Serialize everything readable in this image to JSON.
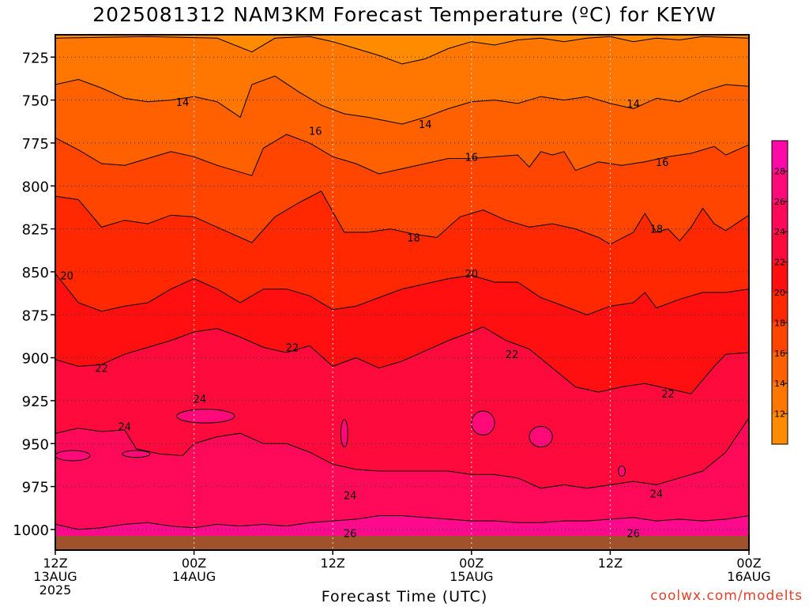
{
  "chart_data": {
    "type": "heatmap",
    "title": "2025081312 NAM3KM Forecast Temperature (ºC) for KEYW",
    "xlabel": "Forecast Time (UTC)",
    "credit": "coolwx.com/modelts",
    "x_ticks": [
      {
        "line1": "12Z",
        "line2": "13AUG",
        "line3": "2025",
        "hour": 0
      },
      {
        "line1": "00Z",
        "line2": "14AUG",
        "line3": "",
        "hour": 12
      },
      {
        "line1": "12Z",
        "line2": "",
        "line3": "",
        "hour": 24
      },
      {
        "line1": "00Z",
        "line2": "15AUG",
        "line3": "",
        "hour": 36
      },
      {
        "line1": "12Z",
        "line2": "",
        "line3": "",
        "hour": 48
      },
      {
        "line1": "00Z",
        "line2": "16AUG",
        "line3": "",
        "hour": 60
      }
    ],
    "xlim": [
      0,
      60
    ],
    "y_ticks": [
      725,
      750,
      775,
      800,
      825,
      850,
      875,
      900,
      925,
      950,
      975,
      1000
    ],
    "ylim": [
      712,
      1012
    ],
    "colorbar": {
      "levels": [
        10,
        12,
        14,
        16,
        18,
        20,
        22,
        24,
        26,
        28,
        30
      ],
      "labels": [
        12,
        14,
        16,
        18,
        20,
        22,
        24,
        26,
        28
      ],
      "colors": [
        "#ff8c00",
        "#ff7600",
        "#ff6000",
        "#ff4500",
        "#ff2800",
        "#ff0f0f",
        "#ff0a3c",
        "#ff0a5a",
        "#ff0a78",
        "#ff0aa6"
      ]
    },
    "ground_color": "#a0522d",
    "contours": [
      {
        "level": 14,
        "color": "#ff7600",
        "points": [
          [
            0,
            741
          ],
          [
            2,
            738
          ],
          [
            4,
            743
          ],
          [
            6,
            749
          ],
          [
            8,
            751
          ],
          [
            10,
            750
          ],
          [
            12,
            748
          ],
          [
            14,
            751
          ],
          [
            16,
            760
          ],
          [
            17,
            741
          ],
          [
            19,
            736
          ],
          [
            21,
            745
          ],
          [
            23,
            753
          ],
          [
            25,
            758
          ],
          [
            27,
            760
          ],
          [
            30,
            764
          ],
          [
            32,
            760
          ],
          [
            34,
            755
          ],
          [
            36,
            751
          ],
          [
            38,
            750
          ],
          [
            40,
            752
          ],
          [
            42,
            748
          ],
          [
            44,
            750
          ],
          [
            46,
            748
          ],
          [
            48,
            752
          ],
          [
            50,
            755
          ],
          [
            52,
            749
          ],
          [
            54,
            751
          ],
          [
            56,
            745
          ],
          [
            58,
            741
          ],
          [
            60,
            742
          ]
        ],
        "labels": [
          {
            "x": 11,
            "y": 751,
            "text": "14"
          },
          {
            "x": 32,
            "y": 764,
            "text": "14"
          },
          {
            "x": 50,
            "y": 752,
            "text": "14"
          }
        ]
      },
      {
        "level": 16,
        "color": "#ff6000",
        "points": [
          [
            0,
            772
          ],
          [
            2,
            779
          ],
          [
            4,
            787
          ],
          [
            6,
            788
          ],
          [
            8,
            784
          ],
          [
            10,
            780
          ],
          [
            12,
            783
          ],
          [
            14,
            788
          ],
          [
            17,
            794
          ],
          [
            18,
            778
          ],
          [
            20,
            770
          ],
          [
            22,
            775
          ],
          [
            24,
            783
          ],
          [
            26,
            787
          ],
          [
            28,
            793
          ],
          [
            30,
            790
          ],
          [
            32,
            787
          ],
          [
            34,
            784
          ],
          [
            36,
            784
          ],
          [
            38,
            783
          ],
          [
            40,
            782
          ],
          [
            41,
            789
          ],
          [
            42,
            780
          ],
          [
            43,
            782
          ],
          [
            44,
            780
          ],
          [
            45,
            791
          ],
          [
            47,
            786
          ],
          [
            49,
            788
          ],
          [
            51,
            786
          ],
          [
            53,
            783
          ],
          [
            55,
            781
          ],
          [
            57,
            777
          ],
          [
            58,
            782
          ],
          [
            60,
            776
          ]
        ],
        "labels": [
          {
            "x": 22.5,
            "y": 768,
            "text": "16"
          },
          {
            "x": 36,
            "y": 783,
            "text": "16"
          },
          {
            "x": 52.5,
            "y": 786,
            "text": "16"
          }
        ]
      },
      {
        "level": 18,
        "color": "#ff4500",
        "points": [
          [
            0,
            806
          ],
          [
            2,
            808
          ],
          [
            4,
            824
          ],
          [
            6,
            820
          ],
          [
            8,
            822
          ],
          [
            10,
            817
          ],
          [
            12,
            818
          ],
          [
            14,
            824
          ],
          [
            17,
            833
          ],
          [
            19,
            818
          ],
          [
            21,
            810
          ],
          [
            23,
            803
          ],
          [
            24,
            815
          ],
          [
            25,
            827
          ],
          [
            27,
            827
          ],
          [
            29,
            825
          ],
          [
            31,
            828
          ],
          [
            33,
            830
          ],
          [
            35,
            818
          ],
          [
            37,
            814
          ],
          [
            39,
            820
          ],
          [
            41,
            824
          ],
          [
            43,
            822
          ],
          [
            45,
            825
          ],
          [
            47,
            830
          ],
          [
            48,
            834
          ],
          [
            50,
            827
          ],
          [
            51,
            816
          ],
          [
            52,
            827
          ],
          [
            53,
            825
          ],
          [
            54,
            832
          ],
          [
            55,
            824
          ],
          [
            56,
            813
          ],
          [
            57,
            822
          ],
          [
            58,
            826
          ],
          [
            60,
            817
          ]
        ],
        "labels": [
          {
            "x": 31,
            "y": 830,
            "text": "18"
          },
          {
            "x": 52,
            "y": 825,
            "text": "18"
          }
        ]
      },
      {
        "level": 20,
        "color": "#ff2800",
        "points": [
          [
            0,
            851
          ],
          [
            2,
            868
          ],
          [
            4,
            873
          ],
          [
            6,
            870
          ],
          [
            8,
            868
          ],
          [
            10,
            860
          ],
          [
            12,
            854
          ],
          [
            14,
            860
          ],
          [
            16,
            868
          ],
          [
            18,
            860
          ],
          [
            20,
            860
          ],
          [
            22,
            864
          ],
          [
            24,
            872
          ],
          [
            26,
            870
          ],
          [
            28,
            865
          ],
          [
            30,
            860
          ],
          [
            32,
            857
          ],
          [
            34,
            854
          ],
          [
            36,
            852
          ],
          [
            38,
            856
          ],
          [
            40,
            856
          ],
          [
            42,
            865
          ],
          [
            44,
            870
          ],
          [
            46,
            875
          ],
          [
            48,
            870
          ],
          [
            50,
            868
          ],
          [
            51,
            862
          ],
          [
            52,
            871
          ],
          [
            54,
            866
          ],
          [
            56,
            862
          ],
          [
            58,
            862
          ],
          [
            60,
            860
          ]
        ],
        "labels": [
          {
            "x": 1,
            "y": 852,
            "text": "20"
          },
          {
            "x": 36,
            "y": 851,
            "text": "20"
          }
        ]
      },
      {
        "level": 22,
        "color": "#ff0f0f",
        "points": [
          [
            0,
            901
          ],
          [
            2,
            905
          ],
          [
            4,
            904
          ],
          [
            6,
            898
          ],
          [
            8,
            894
          ],
          [
            10,
            890
          ],
          [
            12,
            885
          ],
          [
            14,
            883
          ],
          [
            16,
            888
          ],
          [
            18,
            894
          ],
          [
            20,
            897
          ],
          [
            22,
            893
          ],
          [
            24,
            905
          ],
          [
            26,
            900
          ],
          [
            28,
            906
          ],
          [
            30,
            902
          ],
          [
            32,
            896
          ],
          [
            34,
            890
          ],
          [
            36,
            885
          ],
          [
            37,
            882
          ],
          [
            39,
            890
          ],
          [
            41,
            895
          ],
          [
            43,
            906
          ],
          [
            45,
            917
          ],
          [
            47,
            920
          ],
          [
            49,
            917
          ],
          [
            51,
            915
          ],
          [
            53,
            918
          ],
          [
            55,
            921
          ],
          [
            57,
            905
          ],
          [
            58,
            898
          ],
          [
            60,
            897
          ]
        ],
        "labels": [
          {
            "x": 4,
            "y": 906,
            "text": "22"
          },
          {
            "x": 20.5,
            "y": 894,
            "text": "22"
          },
          {
            "x": 39.5,
            "y": 898,
            "text": "22"
          },
          {
            "x": 53,
            "y": 921,
            "text": "22"
          }
        ]
      },
      {
        "level": 24,
        "color": "#ff0a3c",
        "points": [
          [
            0,
            944
          ],
          [
            2,
            941
          ],
          [
            4,
            943
          ],
          [
            6,
            942
          ],
          [
            7,
            953
          ],
          [
            9,
            956
          ],
          [
            11,
            957
          ],
          [
            12,
            950
          ],
          [
            14,
            946
          ],
          [
            16,
            944
          ],
          [
            18,
            950
          ],
          [
            20,
            950
          ],
          [
            22,
            955
          ],
          [
            24,
            962
          ],
          [
            26,
            965
          ],
          [
            28,
            966
          ],
          [
            30,
            966
          ],
          [
            32,
            966
          ],
          [
            34,
            966
          ],
          [
            36,
            968
          ],
          [
            38,
            968
          ],
          [
            40,
            970
          ],
          [
            42,
            976
          ],
          [
            44,
            974
          ],
          [
            46,
            976
          ],
          [
            48,
            974
          ],
          [
            50,
            972
          ],
          [
            52,
            974
          ],
          [
            54,
            970
          ],
          [
            56,
            966
          ],
          [
            58,
            955
          ],
          [
            60,
            935
          ]
        ],
        "labels": [
          {
            "x": 6,
            "y": 940,
            "text": "24"
          },
          {
            "x": 12.5,
            "y": 924,
            "text": "24"
          },
          {
            "x": 25.5,
            "y": 980,
            "text": "24"
          },
          {
            "x": 52,
            "y": 979,
            "text": "24"
          }
        ]
      },
      {
        "level": 26,
        "color": "#ff0a5a",
        "points": [
          [
            0,
            997
          ],
          [
            2,
            1000
          ],
          [
            4,
            999
          ],
          [
            6,
            997
          ],
          [
            8,
            996
          ],
          [
            10,
            998
          ],
          [
            12,
            999
          ],
          [
            14,
            997
          ],
          [
            16,
            998
          ],
          [
            18,
            997
          ],
          [
            20,
            998
          ],
          [
            22,
            996
          ],
          [
            24,
            995
          ],
          [
            26,
            994
          ],
          [
            28,
            992
          ],
          [
            30,
            992
          ],
          [
            32,
            993
          ],
          [
            34,
            994
          ],
          [
            36,
            995
          ],
          [
            38,
            995
          ],
          [
            40,
            996
          ],
          [
            42,
            996
          ],
          [
            44,
            995
          ],
          [
            46,
            995
          ],
          [
            48,
            994
          ],
          [
            50,
            993
          ],
          [
            52,
            995
          ],
          [
            54,
            994
          ],
          [
            56,
            995
          ],
          [
            58,
            994
          ],
          [
            60,
            992
          ]
        ],
        "labels": [
          {
            "x": 25.5,
            "y": 1002,
            "text": "26"
          },
          {
            "x": 50,
            "y": 1002,
            "text": "26"
          }
        ]
      }
    ]
  }
}
